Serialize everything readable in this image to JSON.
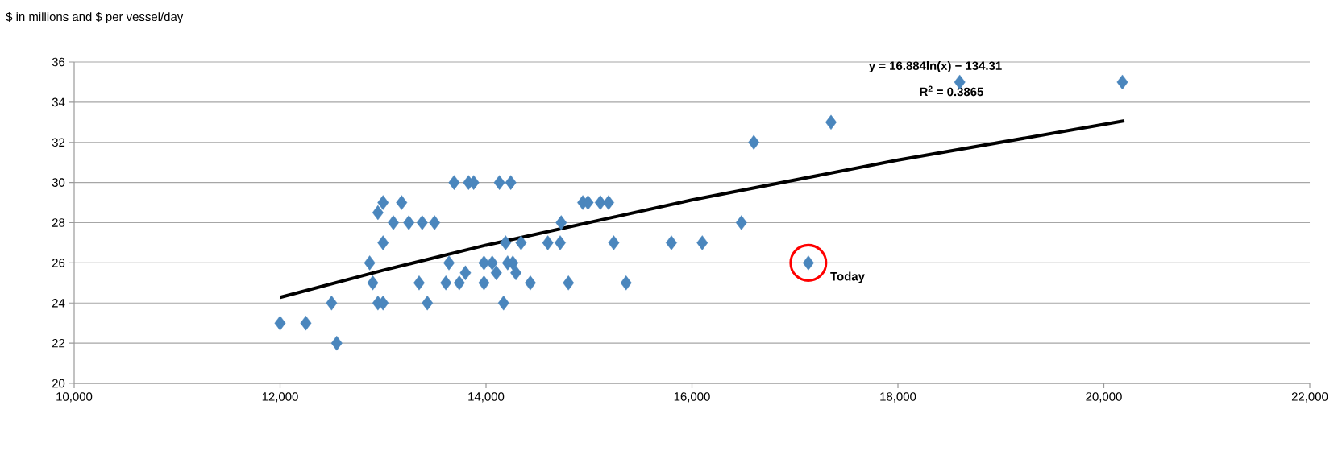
{
  "chart_data": {
    "type": "scatter",
    "ylabel": "$ in millions and $ per vessel/day",
    "xlim": [
      10000,
      22000
    ],
    "xticks": [
      {
        "value": 10000,
        "label": "10,000"
      },
      {
        "value": 12000,
        "label": "12,000"
      },
      {
        "value": 14000,
        "label": "14,000"
      },
      {
        "value": 16000,
        "label": "16,000"
      },
      {
        "value": 18000,
        "label": "18,000"
      },
      {
        "value": 20000,
        "label": "20,000"
      },
      {
        "value": 22000,
        "label": "22,000"
      }
    ],
    "ylim": [
      20,
      36
    ],
    "yticks": [
      20,
      22,
      24,
      26,
      28,
      30,
      32,
      34,
      36
    ],
    "grid": "y",
    "marker": "diamond",
    "series": [
      {
        "color": "#4a86bd",
        "x": [
          12000,
          12250,
          12500,
          12550,
          12870,
          12900,
          12950,
          13000,
          13000,
          12950,
          13000,
          13100,
          13180,
          13250,
          13380,
          13500,
          13350,
          13430,
          13640,
          13610,
          13740,
          13800,
          13690,
          13830,
          13880,
          14130,
          14240,
          13980,
          14060,
          14210,
          14260,
          13980,
          14100,
          14290,
          14170,
          14190,
          14340,
          14430,
          14600,
          14720,
          14730,
          14940,
          14990,
          15110,
          15190,
          14800,
          15240,
          15360,
          15800,
          16100,
          16480,
          16600,
          17130,
          17350,
          18600,
          20180
        ],
        "values": [
          23,
          23,
          24,
          22,
          26,
          25,
          24,
          24,
          27,
          28.5,
          29,
          28,
          29,
          28,
          28,
          28,
          25,
          24,
          26,
          25,
          25,
          25.5,
          30,
          30,
          30,
          30,
          30,
          26,
          26,
          26,
          26,
          25,
          25.5,
          25.5,
          24,
          27,
          27,
          25,
          27,
          27,
          28,
          29,
          29,
          29,
          29,
          25,
          27,
          25,
          27,
          27,
          28,
          32,
          26,
          33,
          35,
          35
        ]
      },
      {
        "type": "line",
        "color": "#000000",
        "marker": "none",
        "x": [
          12000,
          13000,
          14000,
          16000,
          18000,
          20200
        ],
        "values": [
          24.28,
          25.63,
          26.88,
          29.13,
          31.12,
          33.07
        ]
      }
    ],
    "annotations": [
      "y = 16.884ln(x) − 134.31",
      "R$^{2}$ = 0.3865",
      {
        "text": "Today",
        "x": 17130,
        "y": 26
      }
    ]
  }
}
